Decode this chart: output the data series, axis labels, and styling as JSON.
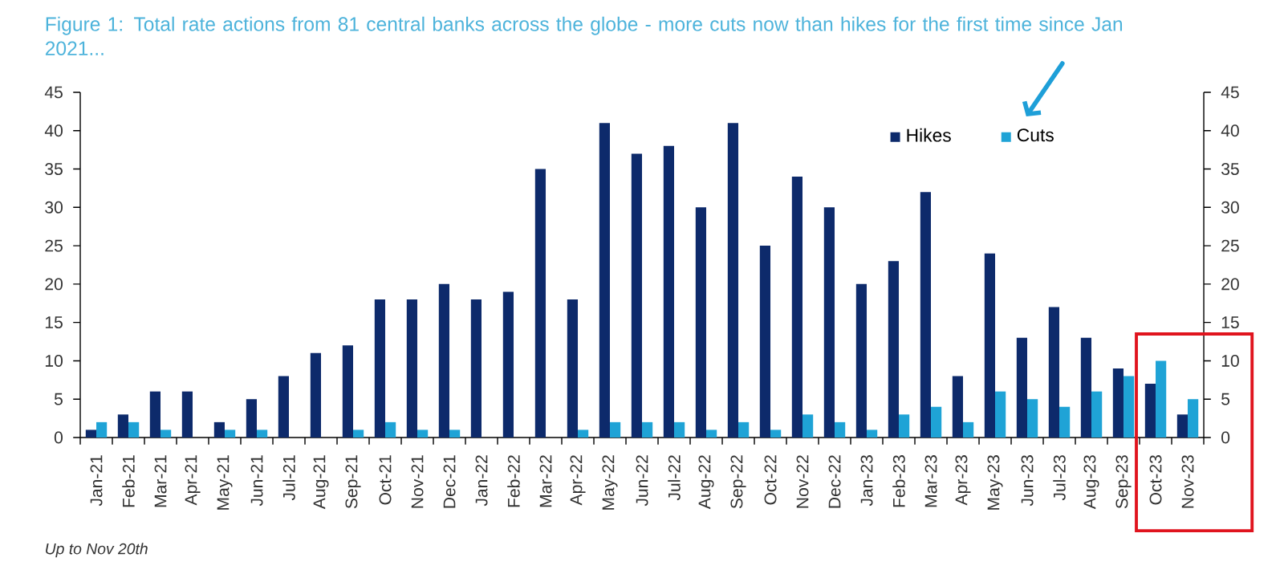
{
  "chart_data": {
    "type": "bar",
    "title": "Figure 1: Total rate actions from 81 central banks across the globe - more cuts now than hikes for the first time since Jan 2021...",
    "categories": [
      "Jan-21",
      "Feb-21",
      "Mar-21",
      "Apr-21",
      "May-21",
      "Jun-21",
      "Jul-21",
      "Aug-21",
      "Sep-21",
      "Oct-21",
      "Nov-21",
      "Dec-21",
      "Jan-22",
      "Feb-22",
      "Mar-22",
      "Apr-22",
      "May-22",
      "Jun-22",
      "Jul-22",
      "Aug-22",
      "Sep-22",
      "Oct-22",
      "Nov-22",
      "Dec-22",
      "Jan-23",
      "Feb-23",
      "Mar-23",
      "Apr-23",
      "May-23",
      "Jun-23",
      "Jul-23",
      "Aug-23",
      "Sep-23",
      "Oct-23",
      "Nov-23"
    ],
    "series": [
      {
        "name": "Hikes",
        "color": "#0d2a6b",
        "values": [
          1,
          3,
          6,
          6,
          2,
          5,
          8,
          11,
          12,
          18,
          18,
          20,
          18,
          19,
          35,
          18,
          41,
          37,
          38,
          30,
          41,
          25,
          34,
          30,
          20,
          23,
          32,
          8,
          24,
          13,
          17,
          13,
          9,
          7,
          3
        ]
      },
      {
        "name": "Cuts",
        "color": "#1fa3d6",
        "values": [
          2,
          2,
          1,
          0,
          1,
          1,
          0,
          0,
          1,
          2,
          1,
          1,
          0,
          0,
          0,
          1,
          2,
          2,
          2,
          1,
          2,
          1,
          3,
          2,
          1,
          3,
          4,
          2,
          6,
          5,
          4,
          6,
          8,
          10,
          5
        ]
      }
    ],
    "ylim": [
      0,
      45
    ],
    "yticks": [
      0,
      5,
      10,
      15,
      20,
      25,
      30,
      35,
      40,
      45
    ],
    "y2lim": [
      0,
      45
    ],
    "y2ticks": [
      0,
      5,
      10,
      15,
      20,
      25,
      30,
      35,
      40,
      45
    ],
    "legend": "top right",
    "annotations": [
      "Up to Nov 20th"
    ]
  }
}
